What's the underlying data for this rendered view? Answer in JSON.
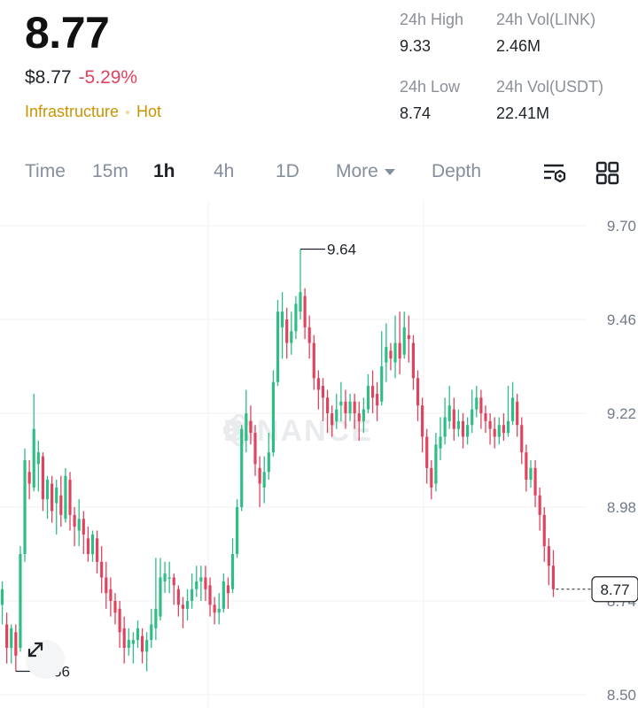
{
  "header": {
    "last_price": "8.77",
    "usd_price": "$8.77",
    "change_pct": "-5.29%",
    "tags": [
      "Infrastructure",
      "Hot"
    ]
  },
  "stats": {
    "high_label": "24h High",
    "high_value": "9.33",
    "vol_base_label": "24h Vol(LINK)",
    "vol_base_value": "2.46M",
    "low_label": "24h Low",
    "low_value": "8.74",
    "vol_quote_label": "24h Vol(USDT)",
    "vol_quote_value": "22.41M"
  },
  "tabs": {
    "time": "Time",
    "m15": "15m",
    "h1": "1h",
    "h4": "4h",
    "d1": "1D",
    "more": "More",
    "depth": "Depth",
    "active": "1h"
  },
  "icons": {
    "indicator": "indicator-settings-icon",
    "layout": "grid-layout-icon",
    "expand": "expand-fullscreen-icon",
    "watermark": "binance-logo-icon"
  },
  "watermark_text": "BINANCE",
  "colors": {
    "up": "#2ebd85",
    "down": "#e0435d",
    "accent": "#c99400"
  },
  "chart_data": {
    "type": "candlestick",
    "y_ticks": [
      "9.70",
      "9.46",
      "9.22",
      "8.98",
      "8.74",
      "8.50"
    ],
    "ylim": [
      8.5,
      9.7
    ],
    "high_marker": "9.64",
    "low_marker": "8.56",
    "current_price_label": "8.77",
    "candles": [
      [
        8.73,
        8.77,
        8.68,
        8.79
      ],
      [
        8.68,
        8.62,
        8.58,
        8.71
      ],
      [
        8.62,
        8.67,
        8.58,
        8.68
      ],
      [
        8.66,
        8.6,
        8.56,
        8.68
      ],
      [
        8.62,
        8.86,
        8.61,
        8.88
      ],
      [
        8.86,
        9.1,
        8.84,
        9.13
      ],
      [
        9.07,
        9.04,
        9.0,
        9.1
      ],
      [
        9.03,
        9.18,
        9.02,
        9.27
      ],
      [
        9.09,
        9.12,
        9.02,
        9.15
      ],
      [
        9.11,
        9.0,
        8.97,
        9.12
      ],
      [
        9.0,
        9.05,
        8.95,
        9.06
      ],
      [
        9.04,
        8.97,
        8.94,
        9.06
      ],
      [
        8.99,
        9.03,
        8.91,
        9.05
      ],
      [
        9.01,
        8.96,
        8.93,
        9.06
      ],
      [
        8.95,
        9.06,
        8.94,
        9.08
      ],
      [
        9.05,
        8.96,
        8.92,
        9.07
      ],
      [
        8.96,
        8.93,
        8.88,
        8.98
      ],
      [
        8.92,
        8.95,
        8.88,
        9.0
      ],
      [
        8.95,
        8.91,
        8.86,
        8.97
      ],
      [
        8.9,
        8.86,
        8.84,
        8.93
      ],
      [
        8.86,
        8.91,
        8.84,
        8.92
      ],
      [
        8.9,
        8.84,
        8.81,
        8.92
      ],
      [
        8.84,
        8.8,
        8.76,
        8.88
      ],
      [
        8.8,
        8.76,
        8.72,
        8.84
      ],
      [
        8.77,
        8.74,
        8.7,
        8.8
      ],
      [
        8.74,
        8.71,
        8.68,
        8.76
      ],
      [
        8.72,
        8.66,
        8.62,
        8.74
      ],
      [
        8.67,
        8.62,
        8.58,
        8.7
      ],
      [
        8.62,
        8.64,
        8.6,
        8.67
      ],
      [
        8.63,
        8.64,
        8.58,
        8.66
      ],
      [
        8.64,
        8.67,
        8.62,
        8.69
      ],
      [
        8.65,
        8.61,
        8.58,
        8.67
      ],
      [
        8.61,
        8.64,
        8.56,
        8.66
      ],
      [
        8.64,
        8.68,
        8.62,
        8.72
      ],
      [
        8.67,
        8.72,
        8.64,
        8.85
      ],
      [
        8.7,
        8.8,
        8.69,
        8.85
      ],
      [
        8.79,
        8.81,
        8.76,
        8.84
      ],
      [
        8.8,
        8.8,
        8.76,
        8.84
      ],
      [
        8.8,
        8.78,
        8.73,
        8.81
      ],
      [
        8.77,
        8.73,
        8.7,
        8.78
      ],
      [
        8.73,
        8.72,
        8.67,
        8.75
      ],
      [
        8.72,
        8.74,
        8.69,
        8.77
      ],
      [
        8.74,
        8.77,
        8.72,
        8.81
      ],
      [
        8.77,
        8.79,
        8.75,
        8.83
      ],
      [
        8.79,
        8.8,
        8.74,
        8.83
      ],
      [
        8.8,
        8.77,
        8.74,
        8.83
      ],
      [
        8.78,
        8.73,
        8.7,
        8.8
      ],
      [
        8.73,
        8.71,
        8.68,
        8.75
      ],
      [
        8.71,
        8.72,
        8.68,
        8.76
      ],
      [
        8.72,
        8.79,
        8.71,
        8.81
      ],
      [
        8.78,
        8.76,
        8.72,
        8.8
      ],
      [
        8.77,
        8.86,
        8.76,
        8.9
      ],
      [
        8.86,
        8.98,
        8.85,
        9.0
      ],
      [
        8.98,
        9.18,
        8.97,
        9.19
      ],
      [
        9.15,
        9.22,
        9.12,
        9.28
      ],
      [
        9.2,
        9.17,
        9.14,
        9.24
      ],
      [
        9.17,
        9.09,
        9.06,
        9.19
      ],
      [
        9.08,
        9.04,
        8.98,
        9.11
      ],
      [
        9.03,
        9.07,
        8.99,
        9.11
      ],
      [
        9.07,
        9.12,
        9.05,
        9.17
      ],
      [
        9.12,
        9.3,
        9.11,
        9.33
      ],
      [
        9.3,
        9.48,
        9.29,
        9.51
      ],
      [
        9.44,
        9.48,
        9.36,
        9.53
      ],
      [
        9.46,
        9.4,
        9.36,
        9.49
      ],
      [
        9.4,
        9.43,
        9.37,
        9.48
      ],
      [
        9.43,
        9.5,
        9.41,
        9.52
      ],
      [
        9.48,
        9.53,
        9.46,
        9.64
      ],
      [
        9.52,
        9.44,
        9.41,
        9.54
      ],
      [
        9.44,
        9.4,
        9.36,
        9.47
      ],
      [
        9.4,
        9.31,
        9.28,
        9.42
      ],
      [
        9.31,
        9.28,
        9.23,
        9.33
      ],
      [
        9.29,
        9.26,
        9.2,
        9.31
      ],
      [
        9.26,
        9.22,
        9.17,
        9.28
      ],
      [
        9.22,
        9.19,
        9.16,
        9.24
      ],
      [
        9.2,
        9.23,
        9.18,
        9.27
      ],
      [
        9.24,
        9.25,
        9.2,
        9.3
      ],
      [
        9.25,
        9.22,
        9.18,
        9.28
      ],
      [
        9.22,
        9.25,
        9.2,
        9.27
      ],
      [
        9.25,
        9.22,
        9.18,
        9.27
      ],
      [
        9.22,
        9.2,
        9.15,
        9.25
      ],
      [
        9.2,
        9.23,
        9.17,
        9.26
      ],
      [
        9.23,
        9.29,
        9.22,
        9.32
      ],
      [
        9.29,
        9.26,
        9.22,
        9.33
      ],
      [
        9.27,
        9.24,
        9.2,
        9.3
      ],
      [
        9.25,
        9.34,
        9.24,
        9.43
      ],
      [
        9.35,
        9.39,
        9.3,
        9.45
      ],
      [
        9.38,
        9.36,
        9.33,
        9.4
      ],
      [
        9.35,
        9.4,
        9.31,
        9.47
      ],
      [
        9.4,
        9.36,
        9.32,
        9.48
      ],
      [
        9.37,
        9.44,
        9.36,
        9.48
      ],
      [
        9.42,
        9.41,
        9.35,
        9.47
      ],
      [
        9.4,
        9.31,
        9.28,
        9.42
      ],
      [
        9.31,
        9.24,
        9.2,
        9.33
      ],
      [
        9.24,
        9.16,
        9.12,
        9.26
      ],
      [
        9.16,
        9.08,
        9.04,
        9.18
      ],
      [
        9.08,
        9.03,
        9.0,
        9.1
      ],
      [
        9.04,
        9.14,
        9.02,
        9.17
      ],
      [
        9.13,
        9.16,
        9.1,
        9.21
      ],
      [
        9.16,
        9.21,
        9.14,
        9.26
      ],
      [
        9.2,
        9.24,
        9.18,
        9.29
      ],
      [
        9.23,
        9.18,
        9.15,
        9.26
      ],
      [
        9.18,
        9.2,
        9.16,
        9.23
      ],
      [
        9.2,
        9.16,
        9.13,
        9.22
      ],
      [
        9.16,
        9.19,
        9.14,
        9.21
      ],
      [
        9.19,
        9.23,
        9.17,
        9.28
      ],
      [
        9.23,
        9.26,
        9.21,
        9.29
      ],
      [
        9.26,
        9.22,
        9.18,
        9.28
      ],
      [
        9.22,
        9.2,
        9.17,
        9.24
      ],
      [
        9.2,
        9.18,
        9.14,
        9.22
      ],
      [
        9.18,
        9.16,
        9.13,
        9.21
      ],
      [
        9.16,
        9.19,
        9.14,
        9.21
      ],
      [
        9.19,
        9.17,
        9.15,
        9.22
      ],
      [
        9.17,
        9.2,
        9.16,
        9.29
      ],
      [
        9.2,
        9.26,
        9.19,
        9.3
      ],
      [
        9.25,
        9.19,
        9.16,
        9.27
      ],
      [
        9.19,
        9.12,
        9.09,
        9.21
      ],
      [
        9.12,
        9.05,
        9.02,
        9.14
      ],
      [
        9.05,
        9.08,
        9.03,
        9.1
      ],
      [
        9.08,
        9.01,
        8.98,
        9.1
      ],
      [
        9.01,
        8.96,
        8.92,
        9.03
      ],
      [
        8.96,
        8.88,
        8.84,
        8.98
      ],
      [
        8.88,
        8.83,
        8.78,
        8.9
      ],
      [
        8.83,
        8.77,
        8.75,
        8.87
      ]
    ]
  }
}
